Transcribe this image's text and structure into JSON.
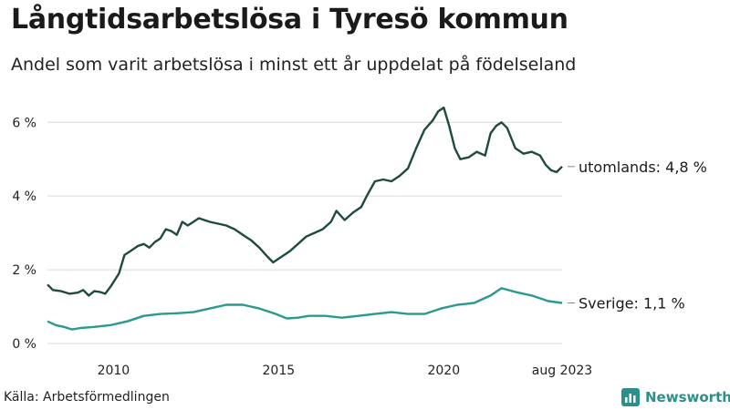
{
  "header": {
    "title": "Långtidsarbetslösa i Tyresö kommun",
    "subtitle": "Andel som varit arbetslösa i minst ett år uppdelat på födelseland"
  },
  "footer": {
    "source": "Källa: Arbetsförmedlingen",
    "brand": "Newsworthy"
  },
  "colors": {
    "utomlands": "#1f4a40",
    "sverige": "#2b9a8e",
    "grid": "#d9d9d9",
    "brand": "#2d8f8a"
  },
  "chart_data": {
    "type": "line",
    "title": "Långtidsarbetslösa i Tyresö kommun",
    "subtitle": "Andel som varit arbetslösa i minst ett år uppdelat på födelseland",
    "xlabel": "",
    "ylabel": "",
    "x_range": [
      "2008-01",
      "2023-08"
    ],
    "ylim": [
      0,
      6.6
    ],
    "y_ticks": [
      0,
      2,
      4,
      6
    ],
    "y_tick_labels": [
      "0 %",
      "2 %",
      "4 %",
      "6 %"
    ],
    "x_ticks": [
      "2010-01",
      "2015-01",
      "2020-01",
      "2023-08"
    ],
    "x_tick_labels": [
      "2010",
      "2015",
      "2020",
      "aug 2023"
    ],
    "grid": "horizontal",
    "series": [
      {
        "name": "utomlands",
        "end_label": "utomlands: 4,8 %",
        "points": [
          [
            "2008-01",
            1.6
          ],
          [
            "2008-03",
            1.45
          ],
          [
            "2008-06",
            1.42
          ],
          [
            "2008-09",
            1.35
          ],
          [
            "2008-12",
            1.38
          ],
          [
            "2009-02",
            1.45
          ],
          [
            "2009-04",
            1.3
          ],
          [
            "2009-06",
            1.42
          ],
          [
            "2009-08",
            1.4
          ],
          [
            "2009-10",
            1.35
          ],
          [
            "2009-12",
            1.55
          ],
          [
            "2010-03",
            1.9
          ],
          [
            "2010-05",
            2.4
          ],
          [
            "2010-07",
            2.5
          ],
          [
            "2010-10",
            2.65
          ],
          [
            "2010-12",
            2.7
          ],
          [
            "2011-02",
            2.6
          ],
          [
            "2011-04",
            2.75
          ],
          [
            "2011-06",
            2.85
          ],
          [
            "2011-08",
            3.1
          ],
          [
            "2011-10",
            3.05
          ],
          [
            "2011-12",
            2.95
          ],
          [
            "2012-02",
            3.3
          ],
          [
            "2012-04",
            3.2
          ],
          [
            "2012-06",
            3.3
          ],
          [
            "2012-08",
            3.4
          ],
          [
            "2012-10",
            3.35
          ],
          [
            "2012-12",
            3.3
          ],
          [
            "2013-03",
            3.25
          ],
          [
            "2013-06",
            3.2
          ],
          [
            "2013-09",
            3.1
          ],
          [
            "2013-12",
            2.95
          ],
          [
            "2014-03",
            2.8
          ],
          [
            "2014-06",
            2.6
          ],
          [
            "2014-09",
            2.35
          ],
          [
            "2014-11",
            2.2
          ],
          [
            "2015-02",
            2.35
          ],
          [
            "2015-05",
            2.5
          ],
          [
            "2015-08",
            2.7
          ],
          [
            "2015-11",
            2.9
          ],
          [
            "2016-02",
            3.0
          ],
          [
            "2016-05",
            3.1
          ],
          [
            "2016-08",
            3.3
          ],
          [
            "2016-10",
            3.6
          ],
          [
            "2017-01",
            3.35
          ],
          [
            "2017-04",
            3.55
          ],
          [
            "2017-07",
            3.7
          ],
          [
            "2017-09",
            4.0
          ],
          [
            "2017-12",
            4.4
          ],
          [
            "2018-03",
            4.45
          ],
          [
            "2018-06",
            4.4
          ],
          [
            "2018-09",
            4.55
          ],
          [
            "2018-12",
            4.75
          ],
          [
            "2019-03",
            5.3
          ],
          [
            "2019-06",
            5.8
          ],
          [
            "2019-09",
            6.05
          ],
          [
            "2019-11",
            6.3
          ],
          [
            "2020-01",
            6.4
          ],
          [
            "2020-03",
            5.9
          ],
          [
            "2020-05",
            5.3
          ],
          [
            "2020-07",
            5.0
          ],
          [
            "2020-10",
            5.05
          ],
          [
            "2021-01",
            5.2
          ],
          [
            "2021-04",
            5.1
          ],
          [
            "2021-06",
            5.7
          ],
          [
            "2021-08",
            5.9
          ],
          [
            "2021-10",
            6.0
          ],
          [
            "2021-12",
            5.85
          ],
          [
            "2022-03",
            5.3
          ],
          [
            "2022-06",
            5.15
          ],
          [
            "2022-09",
            5.2
          ],
          [
            "2022-12",
            5.1
          ],
          [
            "2023-02",
            4.85
          ],
          [
            "2023-04",
            4.7
          ],
          [
            "2023-06",
            4.65
          ],
          [
            "2023-08",
            4.8
          ]
        ]
      },
      {
        "name": "Sverige",
        "end_label": "Sverige: 1,1 %",
        "points": [
          [
            "2008-01",
            0.6
          ],
          [
            "2008-04",
            0.5
          ],
          [
            "2008-07",
            0.45
          ],
          [
            "2008-10",
            0.38
          ],
          [
            "2009-01",
            0.42
          ],
          [
            "2009-06",
            0.45
          ],
          [
            "2009-12",
            0.5
          ],
          [
            "2010-06",
            0.6
          ],
          [
            "2010-12",
            0.75
          ],
          [
            "2011-06",
            0.8
          ],
          [
            "2011-12",
            0.82
          ],
          [
            "2012-06",
            0.85
          ],
          [
            "2012-12",
            0.95
          ],
          [
            "2013-06",
            1.05
          ],
          [
            "2013-12",
            1.05
          ],
          [
            "2014-06",
            0.95
          ],
          [
            "2014-12",
            0.8
          ],
          [
            "2015-04",
            0.68
          ],
          [
            "2015-08",
            0.7
          ],
          [
            "2015-12",
            0.75
          ],
          [
            "2016-06",
            0.75
          ],
          [
            "2016-12",
            0.7
          ],
          [
            "2017-06",
            0.75
          ],
          [
            "2017-12",
            0.8
          ],
          [
            "2018-06",
            0.85
          ],
          [
            "2018-12",
            0.8
          ],
          [
            "2019-06",
            0.8
          ],
          [
            "2019-12",
            0.95
          ],
          [
            "2020-06",
            1.05
          ],
          [
            "2020-12",
            1.1
          ],
          [
            "2021-06",
            1.3
          ],
          [
            "2021-10",
            1.5
          ],
          [
            "2022-03",
            1.4
          ],
          [
            "2022-09",
            1.3
          ],
          [
            "2023-03",
            1.15
          ],
          [
            "2023-08",
            1.1
          ]
        ]
      }
    ]
  }
}
